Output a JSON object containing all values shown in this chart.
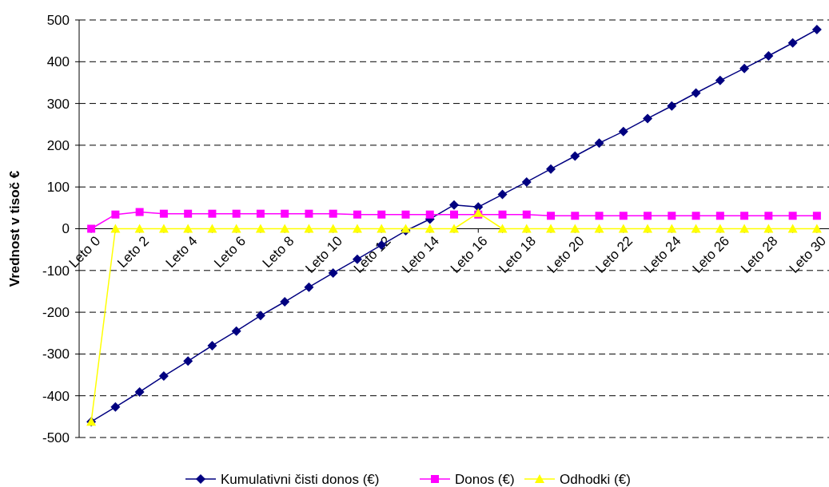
{
  "chart_data": {
    "type": "line",
    "ylabel": "Vrednost v tisoč €",
    "categories": [
      "Leto 0",
      null,
      "Leto 2",
      null,
      "Leto 4",
      null,
      "Leto 6",
      null,
      "Leto 8",
      null,
      "Leto 10",
      null,
      "Leto 12",
      null,
      "Leto 14",
      null,
      "Leto 16",
      null,
      "Leto 18",
      null,
      "Leto 20",
      null,
      "Leto 22",
      null,
      "Leto 24",
      null,
      "Leto 26",
      null,
      "Leto 28",
      null,
      "Leto 30"
    ],
    "series": [
      {
        "name": "Kumulativni čisti donos (€)",
        "color": "#000080",
        "marker": "diamond",
        "values": [
          -462,
          -427,
          -391,
          -353,
          -317,
          -280,
          -245,
          -208,
          -175,
          -140,
          -106,
          -73,
          -39,
          -5,
          23,
          57,
          52,
          82,
          112,
          143,
          174,
          205,
          233,
          264,
          294,
          325,
          355,
          384,
          414,
          445,
          477
        ]
      },
      {
        "name": "Donos (€)",
        "color": "#ff00ff",
        "marker": "square",
        "values": [
          0,
          34,
          40,
          36,
          36,
          36,
          36,
          36,
          36,
          36,
          36,
          34,
          34,
          34,
          34,
          34,
          34,
          34,
          34,
          31,
          31,
          31,
          31,
          31,
          31,
          31,
          31,
          31,
          31,
          31,
          31
        ]
      },
      {
        "name": "Odhodki (€)",
        "color": "#ffff00",
        "marker": "triangle",
        "values": [
          -462,
          0,
          0,
          0,
          0,
          0,
          0,
          0,
          0,
          0,
          0,
          0,
          0,
          0,
          0,
          0,
          38,
          0,
          0,
          0,
          0,
          0,
          0,
          0,
          0,
          0,
          0,
          0,
          0,
          0,
          0
        ]
      }
    ],
    "ylim": [
      -500,
      500
    ],
    "yticks": [
      -500,
      -400,
      -300,
      -200,
      -100,
      0,
      100,
      200,
      300,
      400,
      500
    ],
    "grid": "y",
    "legend": "bottom"
  }
}
